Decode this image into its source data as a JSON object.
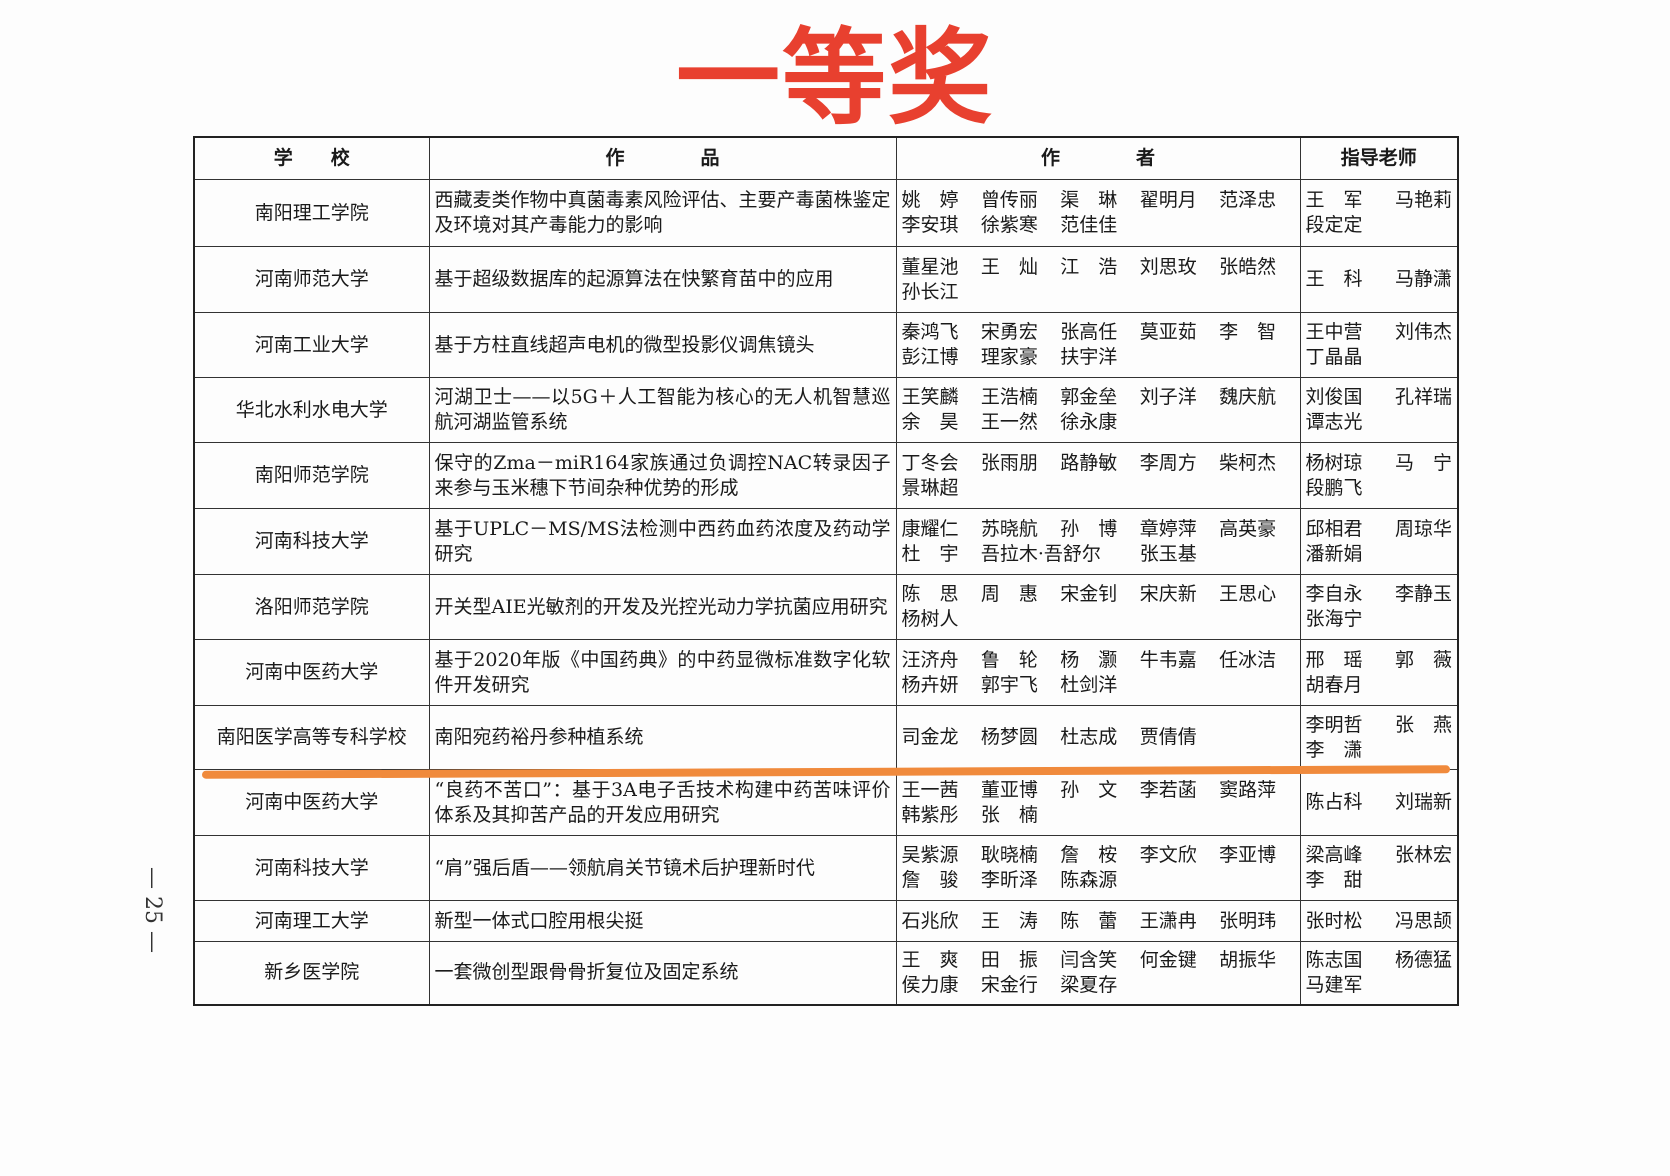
{
  "title": "一等奖",
  "headers": {
    "school": "学　　校",
    "work": "作　　　　品",
    "authors": "作　　　　者",
    "teachers": "指导老师"
  },
  "rows": [
    {
      "school": "南阳理工学院",
      "work": "西藏麦类作物中真菌毒素风险评估、主要产毒菌株鉴定及环境对其产毒能力的影响",
      "authors": [
        "姚　婷",
        "曾传丽",
        "渠　琳",
        "翟明月",
        "范泽忠",
        "李安琪",
        "徐紫寒",
        "范佳佳"
      ],
      "teachers": [
        "王　军",
        "马艳莉",
        "段定定"
      ]
    },
    {
      "school": "河南师范大学",
      "work": "基于超级数据库的起源算法在快繁育苗中的应用",
      "authors": [
        "董星池",
        "王　灿",
        "江　浩",
        "刘思玫",
        "张皓然",
        "孙长江"
      ],
      "teachers": [
        "王　科",
        "马静潇"
      ]
    },
    {
      "school": "河南工业大学",
      "work": "基于方柱直线超声电机的微型投影仪调焦镜头",
      "authors": [
        "秦鸿飞",
        "宋勇宏",
        "张高任",
        "莫亚茹",
        "李　智",
        "彭江博",
        "理家豪",
        "扶宇洋"
      ],
      "teachers": [
        "王中营",
        "刘伟杰",
        "丁晶晶"
      ]
    },
    {
      "school": "华北水利水电大学",
      "work": "河湖卫士——以5G＋人工智能为核心的无人机智慧巡航河湖监管系统",
      "authors": [
        "王笑麟",
        "王浩楠",
        "郭金垒",
        "刘子洋",
        "魏庆航",
        "余　昊",
        "王一然",
        "徐永康"
      ],
      "teachers": [
        "刘俊国",
        "孔祥瑞",
        "谭志光"
      ]
    },
    {
      "school": "南阳师范学院",
      "work": "保守的Zma－miR164家族通过负调控NAC转录因子来参与玉米穗下节间杂种优势的形成",
      "authors": [
        "丁冬会",
        "张雨朋",
        "路静敏",
        "李周方",
        "柴柯杰",
        "景琳超"
      ],
      "teachers": [
        "杨树琼",
        "马　宁",
        "段鹏飞"
      ]
    },
    {
      "school": "河南科技大学",
      "work": "基于UPLC－MS/MS法检测中西药血药浓度及药动学研究",
      "authors": [
        "康耀仁",
        "苏晓航",
        "孙　博",
        "章婷萍",
        "高英豪",
        "杜　宇",
        "吾拉木·吾舒尔",
        "",
        "张玉基"
      ],
      "teachers": [
        "邱相君",
        "周琼华",
        "潘新娟"
      ]
    },
    {
      "school": "洛阳师范学院",
      "work": "开关型AIE光敏剂的开发及光控光动力学抗菌应用研究",
      "authors": [
        "陈　思",
        "周　惠",
        "宋金钊",
        "宋庆新",
        "王思心",
        "杨树人"
      ],
      "teachers": [
        "李自永",
        "李静玉",
        "张海宁"
      ]
    },
    {
      "school": "河南中医药大学",
      "work": "基于2020年版《中国药典》的中药显微标准数字化软件开发研究",
      "authors": [
        "汪济舟",
        "鲁　轮",
        "杨　灏",
        "牛韦嘉",
        "任冰洁",
        "杨卉妍",
        "郭宇飞",
        "杜剑洋"
      ],
      "teachers": [
        "邢　瑶",
        "郭　薇",
        "胡春月"
      ]
    },
    {
      "school": "南阳医学高等专科学校",
      "work": "南阳宛药裕丹参种植系统",
      "authors": [
        "司金龙",
        "杨梦圆",
        "杜志成",
        "贾倩倩"
      ],
      "teachers": [
        "李明哲",
        "张　燕",
        "李　潇"
      ]
    },
    {
      "school": "河南中医药大学",
      "work": "“良药不苦口”：基于3A电子舌技术构建中药苦味评价体系及其抑苦产品的开发应用研究",
      "authors": [
        "王一茜",
        "董亚博",
        "孙　文",
        "李若菡",
        "窦路萍",
        "韩紫彤",
        "张　楠"
      ],
      "teachers": [
        "陈占科",
        "刘瑞新"
      ]
    },
    {
      "school": "河南科技大学",
      "work": "“肩”强后盾——领航肩关节镜术后护理新时代",
      "authors": [
        "吴紫源",
        "耿晓楠",
        "詹　桉",
        "李文欣",
        "李亚博",
        "詹　骏",
        "李昕泽",
        "陈森源"
      ],
      "teachers": [
        "梁高峰",
        "张林宏",
        "李　甜"
      ]
    },
    {
      "school": "河南理工大学",
      "work": "新型一体式口腔用根尖挺",
      "authors": [
        "石兆欣",
        "王　涛",
        "陈　蕾",
        "王潇冉",
        "张明玮"
      ],
      "teachers": [
        "张时松",
        "冯思颉"
      ]
    },
    {
      "school": "新乡医学院",
      "work": "一套微创型跟骨骨折复位及固定系统",
      "authors": [
        "王　爽",
        "田　振",
        "闫含笑",
        "何金键",
        "胡振华",
        "侯力康",
        "宋金行",
        "梁夏存"
      ],
      "teachers": [
        "陈志国",
        "杨德猛",
        "马建军"
      ]
    }
  ],
  "page_number": "— 25 —",
  "colors": {
    "title": "#e8402f",
    "highlight_line": "#f08a3c"
  }
}
